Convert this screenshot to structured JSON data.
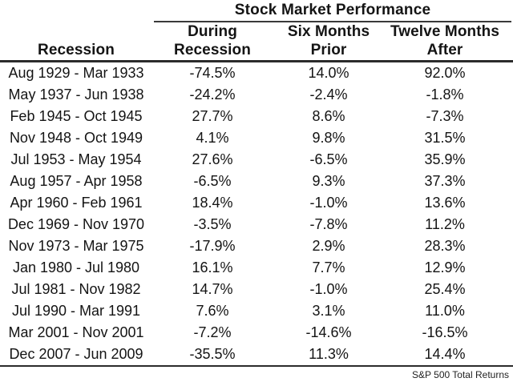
{
  "chart_data": {
    "type": "table",
    "title": "Stock Market Performance",
    "columns": [
      "Recession",
      "During Recession",
      "Six Months Prior",
      "Twelve Months After"
    ],
    "rows": [
      [
        "Aug 1929 - Mar 1933",
        "-74.5%",
        "14.0%",
        "92.0%"
      ],
      [
        "May 1937 - Jun 1938",
        "-24.2%",
        "-2.4%",
        "-1.8%"
      ],
      [
        "Feb 1945 - Oct 1945",
        "27.7%",
        "8.6%",
        "-7.3%"
      ],
      [
        "Nov 1948 - Oct 1949",
        "4.1%",
        "9.8%",
        "31.5%"
      ],
      [
        "Jul 1953 - May 1954",
        "27.6%",
        "-6.5%",
        "35.9%"
      ],
      [
        "Aug 1957 - Apr 1958",
        "-6.5%",
        "9.3%",
        "37.3%"
      ],
      [
        "Apr 1960 - Feb 1961",
        "18.4%",
        "-1.0%",
        "13.6%"
      ],
      [
        "Dec 1969 - Nov 1970",
        "-3.5%",
        "-7.8%",
        "11.2%"
      ],
      [
        "Nov 1973 - Mar 1975",
        "-17.9%",
        "2.9%",
        "28.3%"
      ],
      [
        "Jan 1980 - Jul 1980",
        "16.1%",
        "7.7%",
        "12.9%"
      ],
      [
        "Jul 1981 - Nov 1982",
        "14.7%",
        "-1.0%",
        "25.4%"
      ],
      [
        "Jul 1990 - Mar 1991",
        "7.6%",
        "3.1%",
        "11.0%"
      ],
      [
        "Mar 2001 - Nov 2001",
        "-7.2%",
        "-14.6%",
        "-16.5%"
      ],
      [
        "Dec 2007 - Jun 2009",
        "-35.5%",
        "11.3%",
        "14.4%"
      ]
    ],
    "footnote": "S&P 500 Total Returns"
  },
  "table": {
    "title": "Stock Market Performance",
    "col1_header": "Recession",
    "col_headers": [
      {
        "line1": "During",
        "line2": "Recession"
      },
      {
        "line1": "Six Months",
        "line2": "Prior"
      },
      {
        "line1": "Twelve Months",
        "line2": "After"
      }
    ],
    "rows": [
      {
        "period": "Aug 1929 - Mar 1933",
        "during": "-74.5%",
        "prior": "14.0%",
        "after": "92.0%"
      },
      {
        "period": "May 1937 - Jun 1938",
        "during": "-24.2%",
        "prior": "-2.4%",
        "after": "-1.8%"
      },
      {
        "period": "Feb 1945 - Oct 1945",
        "during": "27.7%",
        "prior": "8.6%",
        "after": "-7.3%"
      },
      {
        "period": "Nov 1948 - Oct 1949",
        "during": "4.1%",
        "prior": "9.8%",
        "after": "31.5%"
      },
      {
        "period": "Jul 1953 - May 1954",
        "during": "27.6%",
        "prior": "-6.5%",
        "after": "35.9%"
      },
      {
        "period": "Aug 1957 - Apr 1958",
        "during": "-6.5%",
        "prior": "9.3%",
        "after": "37.3%"
      },
      {
        "period": "Apr 1960 - Feb 1961",
        "during": "18.4%",
        "prior": "-1.0%",
        "after": "13.6%"
      },
      {
        "period": "Dec 1969 - Nov 1970",
        "during": "-3.5%",
        "prior": "-7.8%",
        "after": "11.2%"
      },
      {
        "period": "Nov 1973 - Mar 1975",
        "during": "-17.9%",
        "prior": "2.9%",
        "after": "28.3%"
      },
      {
        "period": "Jan 1980 - Jul 1980",
        "during": "16.1%",
        "prior": "7.7%",
        "after": "12.9%"
      },
      {
        "period": "Jul 1981 - Nov 1982",
        "during": "14.7%",
        "prior": "-1.0%",
        "after": "25.4%"
      },
      {
        "period": "Jul 1990 - Mar 1991",
        "during": "7.6%",
        "prior": "3.1%",
        "after": "11.0%"
      },
      {
        "period": "Mar 2001 - Nov 2001",
        "during": "-7.2%",
        "prior": "-14.6%",
        "after": "-16.5%"
      },
      {
        "period": "Dec 2007 - Jun 2009",
        "during": "-35.5%",
        "prior": "11.3%",
        "after": "14.4%"
      }
    ],
    "footer": "S&P 500 Total Returns"
  },
  "colors": {
    "background": "#ffffff",
    "text": "#141414",
    "rule": "#2b2b2b"
  }
}
